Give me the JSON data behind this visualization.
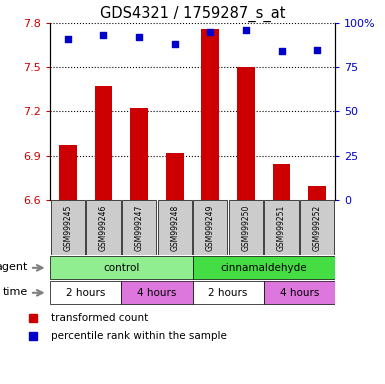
{
  "title": "GDS4321 / 1759287_s_at",
  "samples": [
    "GSM999245",
    "GSM999246",
    "GSM999247",
    "GSM999248",
    "GSM999249",
    "GSM999250",
    "GSM999251",
    "GSM999252"
  ],
  "transformed_count": [
    6.97,
    7.37,
    7.22,
    6.92,
    7.76,
    7.5,
    6.84,
    6.69
  ],
  "percentile_rank": [
    91,
    93,
    92,
    88,
    95,
    96,
    84,
    85
  ],
  "ylim_left": [
    6.6,
    7.8
  ],
  "ylim_right": [
    0,
    100
  ],
  "yticks_left": [
    6.6,
    6.9,
    7.2,
    7.5,
    7.8
  ],
  "yticks_right": [
    0,
    25,
    50,
    75,
    100
  ],
  "ytick_right_labels": [
    "0",
    "25",
    "50",
    "75",
    "100%"
  ],
  "bar_color": "#cc0000",
  "dot_color": "#0000cc",
  "agent_groups": [
    {
      "label": "control",
      "start": 0,
      "end": 4,
      "color": "#90ee90"
    },
    {
      "label": "cinnamaldehyde",
      "start": 4,
      "end": 8,
      "color": "#44dd44"
    }
  ],
  "time_groups": [
    {
      "label": "2 hours",
      "start": 0,
      "end": 2,
      "color": "#ffffff"
    },
    {
      "label": "4 hours",
      "start": 2,
      "end": 4,
      "color": "#dd77dd"
    },
    {
      "label": "2 hours",
      "start": 4,
      "end": 6,
      "color": "#ffffff"
    },
    {
      "label": "4 hours",
      "start": 6,
      "end": 8,
      "color": "#dd77dd"
    }
  ],
  "sample_box_color": "#cccccc",
  "legend_red_label": "transformed count",
  "legend_blue_label": "percentile rank within the sample",
  "grid_color": "#000000"
}
